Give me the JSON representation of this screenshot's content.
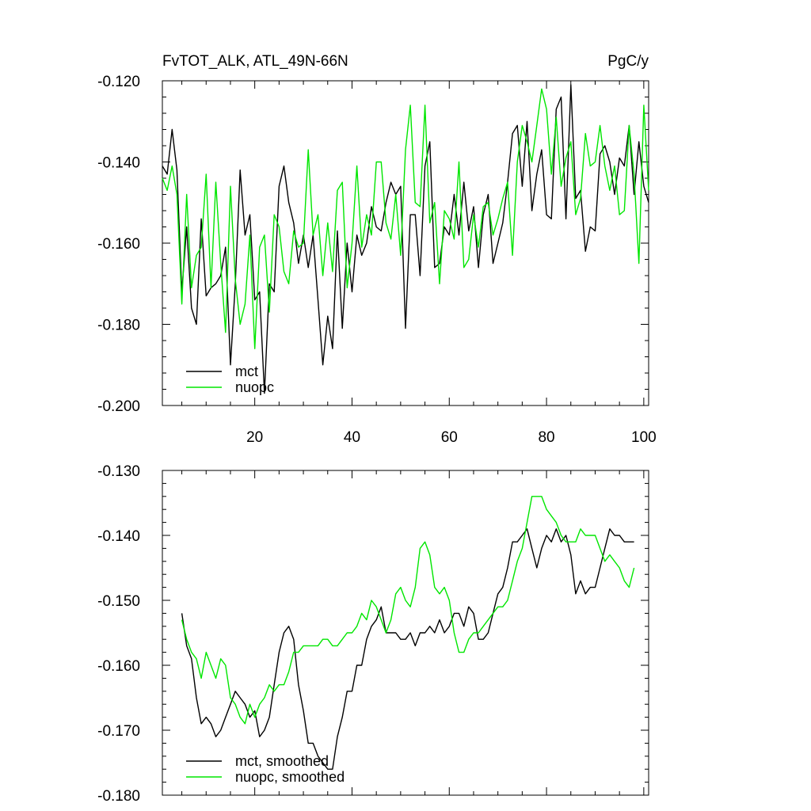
{
  "chart_data": [
    {
      "type": "line",
      "title": "FvTOT_ALK, ATL_49N-66N",
      "units": "PgC/y",
      "xlim": [
        1,
        101
      ],
      "ylim": [
        -0.2,
        -0.12
      ],
      "xticks": [
        20,
        40,
        60,
        80,
        100
      ],
      "yticks": [
        -0.2,
        -0.18,
        -0.16,
        -0.14,
        -0.12
      ],
      "ytick_labels": [
        "-0.200",
        "-0.180",
        "-0.160",
        "-0.140",
        "-0.120"
      ],
      "legend_position": "bottom-left",
      "series": [
        {
          "name": "mct",
          "color": "#000000",
          "x": [
            1,
            2,
            3,
            4,
            5,
            6,
            7,
            8,
            9,
            10,
            11,
            12,
            13,
            14,
            15,
            16,
            17,
            18,
            19,
            20,
            21,
            22,
            23,
            24,
            25,
            26,
            27,
            28,
            29,
            30,
            31,
            32,
            33,
            34,
            35,
            36,
            37,
            38,
            39,
            40,
            41,
            42,
            43,
            44,
            45,
            46,
            47,
            48,
            49,
            50,
            51,
            52,
            53,
            54,
            55,
            56,
            57,
            58,
            59,
            60,
            61,
            62,
            63,
            64,
            65,
            66,
            67,
            68,
            69,
            70,
            71,
            72,
            73,
            74,
            75,
            76,
            77,
            78,
            79,
            80,
            81,
            82,
            83,
            84,
            85,
            86,
            87,
            88,
            89,
            90,
            91,
            92,
            93,
            94,
            95,
            96,
            97,
            98,
            99,
            100,
            101
          ],
          "values": [
            -0.141,
            -0.143,
            -0.132,
            -0.142,
            -0.172,
            -0.156,
            -0.176,
            -0.18,
            -0.154,
            -0.173,
            -0.171,
            -0.17,
            -0.168,
            -0.161,
            -0.19,
            -0.17,
            -0.142,
            -0.158,
            -0.153,
            -0.174,
            -0.172,
            -0.197,
            -0.17,
            -0.172,
            -0.146,
            -0.141,
            -0.15,
            -0.155,
            -0.165,
            -0.158,
            -0.166,
            -0.158,
            -0.174,
            -0.19,
            -0.178,
            -0.186,
            -0.157,
            -0.181,
            -0.16,
            -0.172,
            -0.158,
            -0.163,
            -0.16,
            -0.151,
            -0.156,
            -0.157,
            -0.15,
            -0.145,
            -0.148,
            -0.146,
            -0.181,
            -0.153,
            -0.153,
            -0.168,
            -0.141,
            -0.135,
            -0.166,
            -0.165,
            -0.156,
            -0.158,
            -0.148,
            -0.158,
            -0.145,
            -0.157,
            -0.151,
            -0.166,
            -0.153,
            -0.148,
            -0.165,
            -0.16,
            -0.155,
            -0.145,
            -0.133,
            -0.131,
            -0.146,
            -0.13,
            -0.152,
            -0.143,
            -0.137,
            -0.153,
            -0.154,
            -0.127,
            -0.124,
            -0.154,
            -0.121,
            -0.149,
            -0.147,
            -0.162,
            -0.156,
            -0.157,
            -0.138,
            -0.136,
            -0.14,
            -0.148,
            -0.139,
            -0.141,
            -0.131,
            -0.148,
            -0.135,
            -0.146,
            -0.15
          ]
        },
        {
          "name": "nuopc",
          "color": "#00e600",
          "x": [
            1,
            2,
            3,
            4,
            5,
            6,
            7,
            8,
            9,
            10,
            11,
            12,
            13,
            14,
            15,
            16,
            17,
            18,
            19,
            20,
            21,
            22,
            23,
            24,
            25,
            26,
            27,
            28,
            29,
            30,
            31,
            32,
            33,
            34,
            35,
            36,
            37,
            38,
            39,
            40,
            41,
            42,
            43,
            44,
            45,
            46,
            47,
            48,
            49,
            50,
            51,
            52,
            53,
            54,
            55,
            56,
            57,
            58,
            59,
            60,
            61,
            62,
            63,
            64,
            65,
            66,
            67,
            68,
            69,
            70,
            71,
            72,
            73,
            74,
            75,
            76,
            77,
            78,
            79,
            80,
            81,
            82,
            83,
            84,
            85,
            86,
            87,
            88,
            89,
            90,
            91,
            92,
            93,
            94,
            95,
            96,
            97,
            98,
            99,
            100,
            101
          ],
          "values": [
            -0.144,
            -0.147,
            -0.141,
            -0.148,
            -0.175,
            -0.148,
            -0.171,
            -0.163,
            -0.161,
            -0.143,
            -0.171,
            -0.145,
            -0.165,
            -0.182,
            -0.146,
            -0.169,
            -0.18,
            -0.175,
            -0.158,
            -0.186,
            -0.161,
            -0.158,
            -0.177,
            -0.153,
            -0.156,
            -0.167,
            -0.17,
            -0.157,
            -0.161,
            -0.16,
            -0.137,
            -0.158,
            -0.153,
            -0.168,
            -0.155,
            -0.167,
            -0.147,
            -0.145,
            -0.171,
            -0.16,
            -0.141,
            -0.161,
            -0.153,
            -0.158,
            -0.14,
            -0.14,
            -0.155,
            -0.159,
            -0.148,
            -0.163,
            -0.137,
            -0.126,
            -0.15,
            -0.151,
            -0.126,
            -0.155,
            -0.15,
            -0.17,
            -0.152,
            -0.154,
            -0.159,
            -0.14,
            -0.166,
            -0.164,
            -0.153,
            -0.161,
            -0.151,
            -0.15,
            -0.158,
            -0.154,
            -0.149,
            -0.145,
            -0.163,
            -0.14,
            -0.131,
            -0.135,
            -0.14,
            -0.131,
            -0.122,
            -0.127,
            -0.143,
            -0.129,
            -0.146,
            -0.139,
            -0.135,
            -0.153,
            -0.149,
            -0.133,
            -0.141,
            -0.14,
            -0.131,
            -0.141,
            -0.147,
            -0.141,
            -0.153,
            -0.152,
            -0.131,
            -0.143,
            -0.165,
            -0.126,
            -0.147
          ]
        }
      ]
    },
    {
      "type": "line",
      "title": "",
      "xlim": [
        1,
        101
      ],
      "ylim": [
        -0.18,
        -0.13
      ],
      "xticks": [
        20,
        40,
        60,
        80,
        100
      ],
      "yticks": [
        -0.18,
        -0.17,
        -0.16,
        -0.15,
        -0.14,
        -0.13
      ],
      "ytick_labels": [
        "-0.180",
        "-0.170",
        "-0.160",
        "-0.150",
        "-0.140",
        "-0.130"
      ],
      "legend_position": "bottom-left",
      "series": [
        {
          "name": "mct, smoothed",
          "color": "#000000",
          "x": [
            5,
            6,
            7,
            8,
            9,
            10,
            11,
            12,
            13,
            14,
            15,
            16,
            17,
            18,
            19,
            20,
            21,
            22,
            23,
            24,
            25,
            26,
            27,
            28,
            29,
            30,
            31,
            32,
            33,
            34,
            35,
            36,
            37,
            38,
            39,
            40,
            41,
            42,
            43,
            44,
            45,
            46,
            47,
            48,
            49,
            50,
            51,
            52,
            53,
            54,
            55,
            56,
            57,
            58,
            59,
            60,
            61,
            62,
            63,
            64,
            65,
            66,
            67,
            68,
            69,
            70,
            71,
            72,
            73,
            74,
            75,
            76,
            77,
            78,
            79,
            80,
            81,
            82,
            83,
            84,
            85,
            86,
            87,
            88,
            89,
            90,
            91,
            92,
            93,
            94,
            95,
            96,
            97,
            98
          ],
          "values": [
            -0.152,
            -0.157,
            -0.159,
            -0.165,
            -0.169,
            -0.168,
            -0.169,
            -0.171,
            -0.17,
            -0.168,
            -0.166,
            -0.164,
            -0.165,
            -0.166,
            -0.168,
            -0.167,
            -0.171,
            -0.17,
            -0.168,
            -0.163,
            -0.158,
            -0.155,
            -0.154,
            -0.156,
            -0.163,
            -0.167,
            -0.172,
            -0.172,
            -0.174,
            -0.175,
            -0.176,
            -0.176,
            -0.171,
            -0.168,
            -0.164,
            -0.164,
            -0.16,
            -0.16,
            -0.156,
            -0.154,
            -0.153,
            -0.151,
            -0.155,
            -0.155,
            -0.155,
            -0.156,
            -0.156,
            -0.155,
            -0.157,
            -0.155,
            -0.155,
            -0.154,
            -0.155,
            -0.153,
            -0.155,
            -0.154,
            -0.152,
            -0.152,
            -0.154,
            -0.151,
            -0.152,
            -0.156,
            -0.156,
            -0.155,
            -0.152,
            -0.149,
            -0.148,
            -0.145,
            -0.141,
            -0.141,
            -0.14,
            -0.139,
            -0.142,
            -0.145,
            -0.142,
            -0.14,
            -0.141,
            -0.139,
            -0.141,
            -0.14,
            -0.143,
            -0.149,
            -0.147,
            -0.149,
            -0.148,
            -0.148,
            -0.145,
            -0.142,
            -0.139,
            -0.14,
            -0.14,
            -0.141,
            -0.141,
            -0.141
          ]
        },
        {
          "name": "nuopc, smoothed",
          "color": "#00e600",
          "x": [
            5,
            6,
            7,
            8,
            9,
            10,
            11,
            12,
            13,
            14,
            15,
            16,
            17,
            18,
            19,
            20,
            21,
            22,
            23,
            24,
            25,
            26,
            27,
            28,
            29,
            30,
            31,
            32,
            33,
            34,
            35,
            36,
            37,
            38,
            39,
            40,
            41,
            42,
            43,
            44,
            45,
            46,
            47,
            48,
            49,
            50,
            51,
            52,
            53,
            54,
            55,
            56,
            57,
            58,
            59,
            60,
            61,
            62,
            63,
            64,
            65,
            66,
            67,
            68,
            69,
            70,
            71,
            72,
            73,
            74,
            75,
            76,
            77,
            78,
            79,
            80,
            81,
            82,
            83,
            84,
            85,
            86,
            87,
            88,
            89,
            90,
            91,
            92,
            93,
            94,
            95,
            96,
            97,
            98
          ],
          "values": [
            -0.153,
            -0.156,
            -0.158,
            -0.159,
            -0.162,
            -0.158,
            -0.16,
            -0.162,
            -0.159,
            -0.16,
            -0.165,
            -0.166,
            -0.168,
            -0.169,
            -0.166,
            -0.168,
            -0.166,
            -0.165,
            -0.163,
            -0.164,
            -0.163,
            -0.163,
            -0.161,
            -0.158,
            -0.158,
            -0.157,
            -0.157,
            -0.157,
            -0.157,
            -0.156,
            -0.156,
            -0.157,
            -0.157,
            -0.156,
            -0.155,
            -0.155,
            -0.154,
            -0.152,
            -0.153,
            -0.15,
            -0.151,
            -0.153,
            -0.155,
            -0.153,
            -0.149,
            -0.148,
            -0.15,
            -0.151,
            -0.148,
            -0.142,
            -0.141,
            -0.143,
            -0.148,
            -0.149,
            -0.148,
            -0.15,
            -0.155,
            -0.158,
            -0.158,
            -0.156,
            -0.155,
            -0.155,
            -0.154,
            -0.153,
            -0.152,
            -0.151,
            -0.151,
            -0.15,
            -0.147,
            -0.144,
            -0.142,
            -0.138,
            -0.134,
            -0.134,
            -0.134,
            -0.136,
            -0.137,
            -0.138,
            -0.14,
            -0.141,
            -0.141,
            -0.141,
            -0.139,
            -0.14,
            -0.14,
            -0.14,
            -0.142,
            -0.144,
            -0.143,
            -0.144,
            -0.145,
            -0.147,
            -0.148,
            -0.145
          ]
        }
      ]
    }
  ]
}
